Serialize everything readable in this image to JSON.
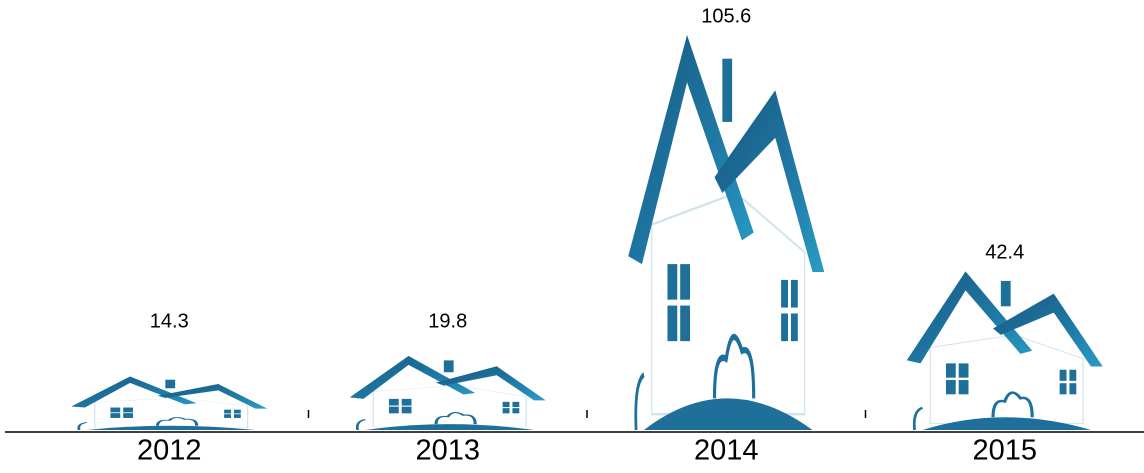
{
  "chart_data": {
    "type": "pictograph",
    "categories": [
      "2012",
      "2013",
      "2014",
      "2015"
    ],
    "values": [
      14.3,
      19.8,
      105.6,
      42.4
    ],
    "color": "#1e6f9a"
  }
}
